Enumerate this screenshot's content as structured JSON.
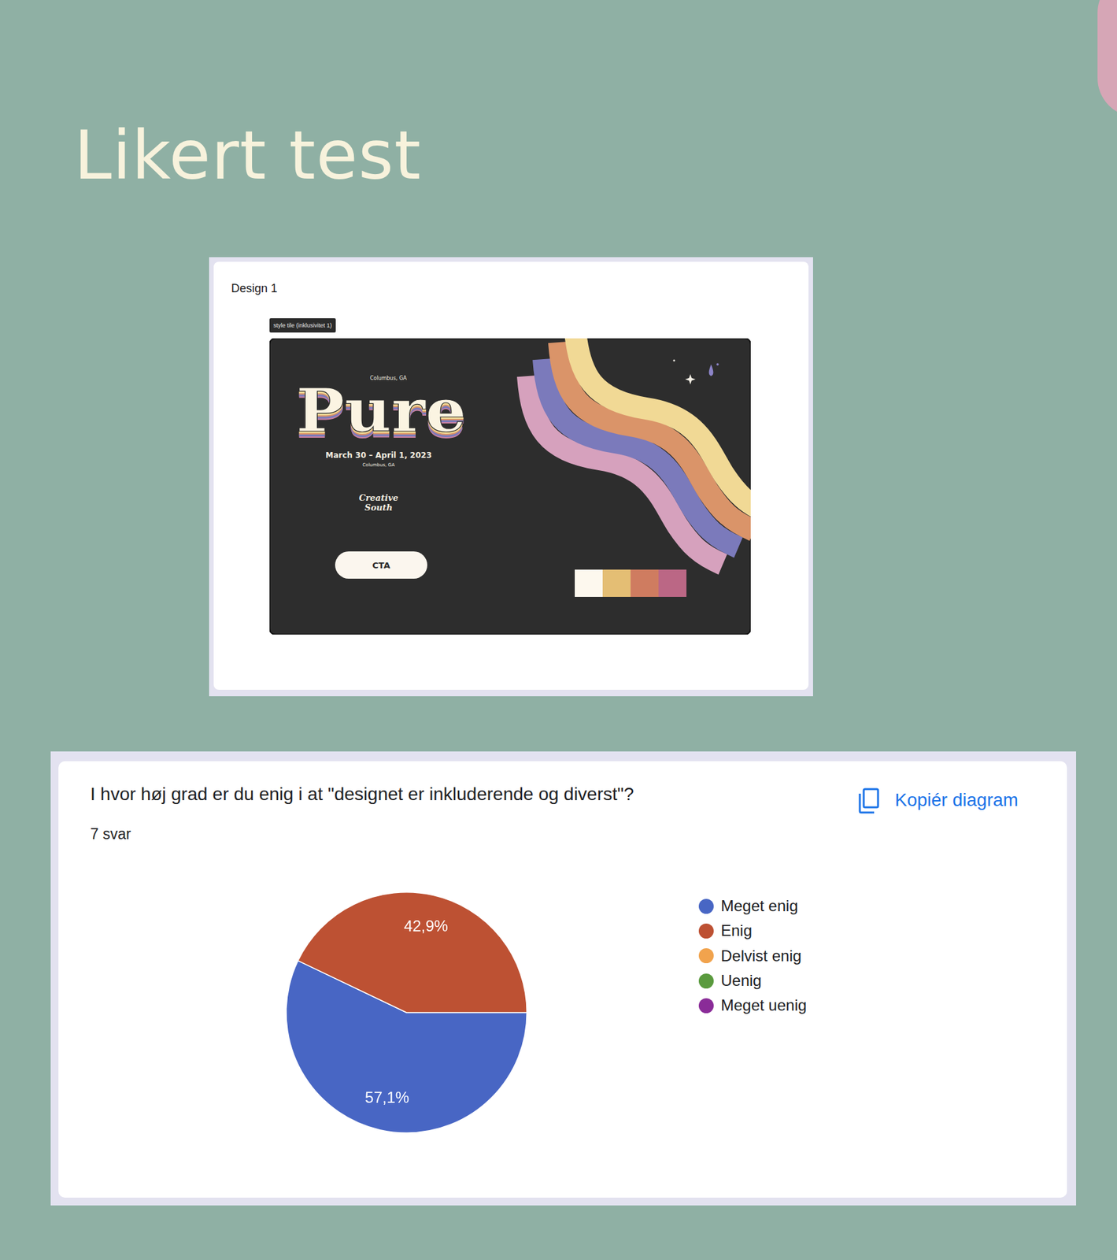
{
  "slide": {
    "title": "Likert test"
  },
  "design_card": {
    "label": "Design 1",
    "tag": "style tile (inklusivitet 1)",
    "location_top": "Columbus, GA",
    "name": "Pure",
    "dates": "March 30 – April 1, 2023",
    "location_bottom": "Columbus, GA",
    "logo": "Creative South",
    "button": "CTA"
  },
  "form_card": {
    "responses": "7 svar",
    "copy_button": "Kopiér diagram"
  },
  "chart_data": {
    "type": "pie",
    "title": "I hvor høj grad er du enig i at \"designet er inkluderende og diverst\"?",
    "categories": [
      "Meget enig",
      "Enig",
      "Delvist enig",
      "Uenig",
      "Meget uenig"
    ],
    "values": [
      57.1,
      42.9,
      0,
      0,
      0
    ],
    "value_labels": [
      "57,1%",
      "42,9%",
      null,
      null,
      null
    ],
    "colors": [
      "#4866c4",
      "#bd5133",
      "#f1a34d",
      "#5a9a3e",
      "#8a2c98"
    ],
    "legend": "right",
    "data_labels": true
  }
}
